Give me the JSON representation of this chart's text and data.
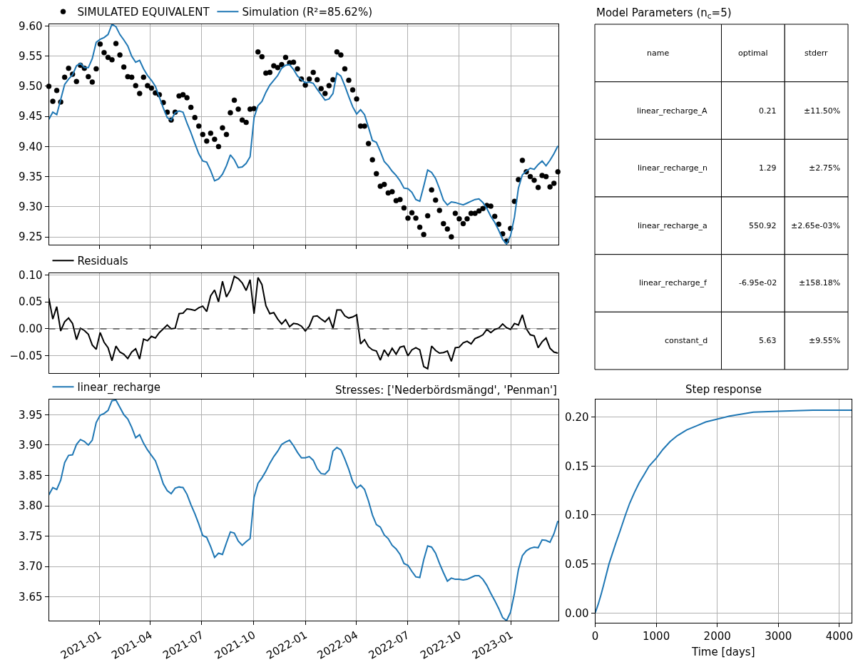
{
  "chart_data": [
    {
      "type": "line",
      "x": [
        "2020-10-03",
        "2020-10-10",
        "2020-10-17",
        "2020-10-24",
        "2020-10-31",
        "2020-11-07",
        "2020-11-14",
        "2020-11-21",
        "2020-11-28",
        "2020-12-05",
        "2020-12-12",
        "2020-12-19",
        "2020-12-26",
        "2021-01-02",
        "2021-01-09",
        "2021-01-16",
        "2021-01-23",
        "2021-01-30",
        "2021-02-06",
        "2021-02-13",
        "2021-02-20",
        "2021-02-27",
        "2021-03-06",
        "2021-03-13",
        "2021-03-20",
        "2021-03-27",
        "2021-04-03",
        "2021-04-10",
        "2021-04-17",
        "2021-04-24",
        "2021-05-01",
        "2021-05-08",
        "2021-05-15",
        "2021-05-22",
        "2021-05-29",
        "2021-06-05",
        "2021-06-12",
        "2021-06-19",
        "2021-06-26",
        "2021-07-03",
        "2021-07-10",
        "2021-07-17",
        "2021-07-24",
        "2021-07-31",
        "2021-08-07",
        "2021-08-14",
        "2021-08-21",
        "2021-08-28",
        "2021-09-04",
        "2021-09-11",
        "2021-09-18",
        "2021-09-25",
        "2021-10-02",
        "2021-10-09",
        "2021-10-16",
        "2021-10-23",
        "2021-10-30",
        "2021-11-06",
        "2021-11-13",
        "2021-11-20",
        "2021-11-27",
        "2021-12-04",
        "2021-12-11",
        "2021-12-18",
        "2021-12-25",
        "2022-01-01",
        "2022-01-08",
        "2022-01-15",
        "2022-01-22",
        "2022-01-29",
        "2022-02-05",
        "2022-02-12",
        "2022-02-19",
        "2022-02-26",
        "2022-03-05",
        "2022-03-12",
        "2022-03-19",
        "2022-03-26",
        "2022-04-02",
        "2022-04-09",
        "2022-04-16",
        "2022-04-23",
        "2022-04-30",
        "2022-05-07",
        "2022-05-14",
        "2022-05-21",
        "2022-05-28",
        "2022-06-04",
        "2022-06-11",
        "2022-06-18",
        "2022-06-25",
        "2022-07-02",
        "2022-07-09",
        "2022-07-16",
        "2022-07-23",
        "2022-07-30",
        "2022-08-06",
        "2022-08-13",
        "2022-08-20",
        "2022-08-27",
        "2022-09-03",
        "2022-09-10",
        "2022-09-17",
        "2022-09-24",
        "2022-10-01",
        "2022-10-08",
        "2022-10-15",
        "2022-10-22",
        "2022-10-29",
        "2022-11-05",
        "2022-11-12",
        "2022-11-19",
        "2022-11-26",
        "2022-12-03",
        "2022-12-10",
        "2022-12-17",
        "2022-12-24",
        "2022-12-31",
        "2023-01-07",
        "2023-01-14",
        "2023-01-21",
        "2023-01-28",
        "2023-02-04",
        "2023-02-11",
        "2023-02-18",
        "2023-02-25",
        "2023-03-04",
        "2023-03-11",
        "2023-03-18",
        "2023-03-25"
      ],
      "series": [
        {
          "name": "SIMULATED EQUIVALENT",
          "type": "scatter",
          "marker": "circle",
          "color": "#000000",
          "values": [
            9.5,
            9.475,
            9.493,
            9.474,
            9.515,
            9.53,
            9.52,
            9.508,
            9.535,
            9.53,
            9.516,
            9.507,
            9.529,
            9.57,
            9.556,
            9.548,
            9.544,
            9.571,
            9.552,
            9.532,
            9.516,
            9.515,
            9.501,
            9.488,
            9.515,
            9.501,
            9.497,
            9.489,
            9.486,
            9.473,
            9.457,
            9.444,
            9.457,
            9.484,
            9.486,
            9.481,
            9.465,
            9.448,
            9.434,
            9.42,
            9.409,
            9.422,
            9.412,
            9.4,
            9.431,
            9.42,
            9.456,
            9.477,
            9.462,
            9.444,
            9.44,
            9.462,
            9.463,
            9.557,
            9.549,
            9.522,
            9.523,
            9.534,
            9.531,
            9.536,
            9.548,
            9.539,
            9.54,
            9.529,
            9.512,
            9.502,
            9.512,
            9.523,
            9.511,
            9.496,
            9.488,
            9.501,
            9.511,
            9.557,
            9.552,
            9.529,
            9.51,
            9.494,
            9.479,
            9.434,
            9.434,
            9.405,
            9.378,
            9.355,
            9.334,
            9.337,
            9.323,
            9.325,
            9.31,
            9.312,
            9.298,
            9.281,
            9.29,
            9.281,
            9.266,
            9.254,
            9.285,
            9.328,
            9.311,
            9.294,
            9.272,
            9.263,
            9.25,
            9.289,
            9.28,
            9.272,
            9.28,
            9.289,
            9.289,
            9.293,
            9.297,
            9.302,
            9.301,
            9.284,
            9.271,
            9.255,
            9.243,
            9.264,
            9.309,
            9.345,
            9.377,
            9.358,
            9.35,
            9.344,
            9.332,
            9.352,
            9.35,
            9.333,
            9.339,
            9.358
          ]
        },
        {
          "name": "Simulation (R²=85.62%)",
          "color": "#1f77b4",
          "values": [
            9.445,
            9.457,
            9.453,
            9.478,
            9.503,
            9.512,
            9.519,
            9.534,
            9.538,
            9.531,
            9.531,
            9.546,
            9.573,
            9.578,
            9.581,
            9.586,
            9.603,
            9.599,
            9.586,
            9.577,
            9.567,
            9.55,
            9.54,
            9.543,
            9.529,
            9.518,
            9.51,
            9.5,
            9.482,
            9.464,
            9.448,
            9.444,
            9.456,
            9.459,
            9.457,
            9.439,
            9.423,
            9.405,
            9.388,
            9.376,
            9.374,
            9.36,
            9.343,
            9.346,
            9.354,
            9.368,
            9.386,
            9.378,
            9.365,
            9.366,
            9.372,
            9.383,
            9.448,
            9.468,
            9.475,
            9.49,
            9.502,
            9.51,
            9.518,
            9.53,
            9.535,
            9.536,
            9.528,
            9.517,
            9.511,
            9.506,
            9.507,
            9.505,
            9.495,
            9.486,
            9.477,
            9.479,
            9.488,
            9.522,
            9.517,
            9.501,
            9.483,
            9.466,
            9.454,
            9.461,
            9.453,
            9.432,
            9.41,
            9.407,
            9.392,
            9.375,
            9.368,
            9.359,
            9.352,
            9.343,
            9.331,
            9.33,
            9.324,
            9.312,
            9.309,
            9.334,
            9.361,
            9.357,
            9.347,
            9.33,
            9.311,
            9.303,
            9.308,
            9.307,
            9.305,
            9.303,
            9.306,
            9.309,
            9.312,
            9.313,
            9.307,
            9.297,
            9.284,
            9.274,
            9.261,
            9.246,
            9.238,
            9.252,
            9.283,
            9.331,
            9.353,
            9.359,
            9.364,
            9.362,
            9.37,
            9.376,
            9.368,
            9.377,
            9.388,
            9.401
          ]
        }
      ],
      "xlim": [
        "2020-10-03",
        "2023-03-26"
      ],
      "xticks": [
        "2021-01-01",
        "2021-04-01",
        "2021-07-01",
        "2021-10-01",
        "2022-01-01",
        "2022-04-01",
        "2022-07-01",
        "2022-10-01",
        "2023-01-01"
      ],
      "ylim": [
        9.237,
        9.603
      ],
      "yticks": [
        9.25,
        {
          "value": 9.3,
          "label": "9.30"
        },
        9.35,
        {
          "value": 9.4,
          "label": "9.40"
        },
        9.45,
        {
          "value": 9.5,
          "label": "9.50"
        },
        9.55,
        {
          "value": 9.6,
          "label": "9.60"
        }
      ],
      "grid": true,
      "legend": "top left",
      "tick_labels": "y"
    },
    {
      "type": "other",
      "title": "Model Parameters (n$_{c}$=5)",
      "categories": [
        "name",
        "optimal",
        "stderr"
      ],
      "cell_labels": [
        [
          "linear_recharge_A",
          "0.21",
          "±11.50%"
        ],
        [
          "linear_recharge_n",
          "1.29",
          "±2.75%"
        ],
        [
          "linear_recharge_a",
          "550.92",
          "±2.65e-03%"
        ],
        [
          "linear_recharge_f",
          "-6.95e-02",
          "±158.18%"
        ],
        [
          "constant_d",
          "5.63",
          "±9.55%"
        ]
      ]
    },
    {
      "type": "line",
      "x": [
        "2020-10-03",
        "2020-10-10",
        "2020-10-17",
        "2020-10-24",
        "2020-10-31",
        "2020-11-07",
        "2020-11-14",
        "2020-11-21",
        "2020-11-28",
        "2020-12-05",
        "2020-12-12",
        "2020-12-19",
        "2020-12-26",
        "2021-01-02",
        "2021-01-09",
        "2021-01-16",
        "2021-01-23",
        "2021-01-30",
        "2021-02-06",
        "2021-02-13",
        "2021-02-20",
        "2021-02-27",
        "2021-03-06",
        "2021-03-13",
        "2021-03-20",
        "2021-03-27",
        "2021-04-03",
        "2021-04-10",
        "2021-04-17",
        "2021-04-24",
        "2021-05-01",
        "2021-05-08",
        "2021-05-15",
        "2021-05-22",
        "2021-05-29",
        "2021-06-05",
        "2021-06-12",
        "2021-06-19",
        "2021-06-26",
        "2021-07-03",
        "2021-07-10",
        "2021-07-17",
        "2021-07-24",
        "2021-07-31",
        "2021-08-07",
        "2021-08-14",
        "2021-08-21",
        "2021-08-28",
        "2021-09-04",
        "2021-09-11",
        "2021-09-18",
        "2021-09-25",
        "2021-10-02",
        "2021-10-09",
        "2021-10-16",
        "2021-10-23",
        "2021-10-30",
        "2021-11-06",
        "2021-11-13",
        "2021-11-20",
        "2021-11-27",
        "2021-12-04",
        "2021-12-11",
        "2021-12-18",
        "2021-12-25",
        "2022-01-01",
        "2022-01-08",
        "2022-01-15",
        "2022-01-22",
        "2022-01-29",
        "2022-02-05",
        "2022-02-12",
        "2022-02-19",
        "2022-02-26",
        "2022-03-05",
        "2022-03-12",
        "2022-03-19",
        "2022-03-26",
        "2022-04-02",
        "2022-04-09",
        "2022-04-16",
        "2022-04-23",
        "2022-04-30",
        "2022-05-07",
        "2022-05-14",
        "2022-05-21",
        "2022-05-28",
        "2022-06-04",
        "2022-06-11",
        "2022-06-18",
        "2022-06-25",
        "2022-07-02",
        "2022-07-09",
        "2022-07-16",
        "2022-07-23",
        "2022-07-30",
        "2022-08-06",
        "2022-08-13",
        "2022-08-20",
        "2022-08-27",
        "2022-09-03",
        "2022-09-10",
        "2022-09-17",
        "2022-09-24",
        "2022-10-01",
        "2022-10-08",
        "2022-10-15",
        "2022-10-22",
        "2022-10-29",
        "2022-11-05",
        "2022-11-12",
        "2022-11-19",
        "2022-11-26",
        "2022-12-03",
        "2022-12-10",
        "2022-12-17",
        "2022-12-24",
        "2022-12-31",
        "2023-01-07",
        "2023-01-14",
        "2023-01-21",
        "2023-01-28",
        "2023-02-04",
        "2023-02-11",
        "2023-02-18",
        "2023-02-25",
        "2023-03-04",
        "2023-03-11",
        "2023-03-18",
        "2023-03-25"
      ],
      "series": [
        {
          "name": "Residuals",
          "color": "#000000",
          "values": [
            0.057,
            0.018,
            0.041,
            -0.004,
            0.013,
            0.02,
            0.01,
            -0.02,
            0.001,
            -0.003,
            -0.01,
            -0.03,
            -0.038,
            -0.007,
            -0.025,
            -0.035,
            -0.059,
            -0.032,
            -0.043,
            -0.047,
            -0.055,
            -0.043,
            -0.037,
            -0.056,
            -0.019,
            -0.022,
            -0.014,
            -0.017,
            -0.007,
            0.0,
            0.007,
            0.0,
            0.001,
            0.028,
            0.029,
            0.037,
            0.036,
            0.034,
            0.039,
            0.042,
            0.032,
            0.061,
            0.072,
            0.05,
            0.088,
            0.059,
            0.072,
            0.097,
            0.093,
            0.085,
            0.071,
            0.091,
            0.028,
            0.095,
            0.082,
            0.043,
            0.028,
            0.03,
            0.018,
            0.009,
            0.017,
            0.004,
            0.01,
            0.009,
            0.005,
            -0.004,
            0.005,
            0.023,
            0.024,
            0.018,
            0.013,
            0.021,
            0.001,
            0.035,
            0.035,
            0.024,
            0.02,
            0.022,
            0.026,
            -0.028,
            -0.02,
            -0.033,
            -0.039,
            -0.041,
            -0.058,
            -0.039,
            -0.05,
            -0.036,
            -0.047,
            -0.034,
            -0.032,
            -0.05,
            -0.039,
            -0.035,
            -0.039,
            -0.07,
            -0.074,
            -0.032,
            -0.04,
            -0.045,
            -0.044,
            -0.041,
            -0.06,
            -0.035,
            -0.034,
            -0.026,
            -0.023,
            -0.028,
            -0.018,
            -0.015,
            -0.011,
            -0.001,
            -0.007,
            -0.001,
            0.001,
            0.009,
            0.002,
            -0.001,
            0.01,
            0.007,
            0.026,
            0.0,
            -0.011,
            -0.013,
            -0.035,
            -0.024,
            -0.017,
            -0.036,
            -0.043,
            -0.045
          ]
        }
      ],
      "xlim": [
        "2020-10-03",
        "2023-03-26"
      ],
      "xticks": [
        "2021-01-01",
        "2021-04-01",
        "2021-07-01",
        "2021-10-01",
        "2022-01-01",
        "2022-04-01",
        "2022-07-01",
        "2022-10-01",
        "2023-01-01"
      ],
      "ylim": [
        -0.082,
        0.103
      ],
      "yticks": [
        {
          "value": -0.05,
          "label": "−0.05"
        },
        {
          "value": 0,
          "label": "0.00"
        },
        0.05,
        {
          "value": 0.1,
          "label": "0.10"
        }
      ],
      "ref_lines": [
        {
          "axis": "y",
          "value": 0,
          "color": "#555555",
          "line_style": "dashed"
        }
      ],
      "grid": true,
      "legend": "top left",
      "tick_labels": "y"
    },
    {
      "type": "line",
      "x": [
        "2020-10-03",
        "2020-10-10",
        "2020-10-17",
        "2020-10-24",
        "2020-10-31",
        "2020-11-07",
        "2020-11-14",
        "2020-11-21",
        "2020-11-28",
        "2020-12-05",
        "2020-12-12",
        "2020-12-19",
        "2020-12-26",
        "2021-01-02",
        "2021-01-09",
        "2021-01-16",
        "2021-01-23",
        "2021-01-30",
        "2021-02-06",
        "2021-02-13",
        "2021-02-20",
        "2021-02-27",
        "2021-03-06",
        "2021-03-13",
        "2021-03-20",
        "2021-03-27",
        "2021-04-03",
        "2021-04-10",
        "2021-04-17",
        "2021-04-24",
        "2021-05-01",
        "2021-05-08",
        "2021-05-15",
        "2021-05-22",
        "2021-05-29",
        "2021-06-05",
        "2021-06-12",
        "2021-06-19",
        "2021-06-26",
        "2021-07-03",
        "2021-07-10",
        "2021-07-17",
        "2021-07-24",
        "2021-07-31",
        "2021-08-07",
        "2021-08-14",
        "2021-08-21",
        "2021-08-28",
        "2021-09-04",
        "2021-09-11",
        "2021-09-18",
        "2021-09-25",
        "2021-10-02",
        "2021-10-09",
        "2021-10-16",
        "2021-10-23",
        "2021-10-30",
        "2021-11-06",
        "2021-11-13",
        "2021-11-20",
        "2021-11-27",
        "2021-12-04",
        "2021-12-11",
        "2021-12-18",
        "2021-12-25",
        "2022-01-01",
        "2022-01-08",
        "2022-01-15",
        "2022-01-22",
        "2022-01-29",
        "2022-02-05",
        "2022-02-12",
        "2022-02-19",
        "2022-02-26",
        "2022-03-05",
        "2022-03-12",
        "2022-03-19",
        "2022-03-26",
        "2022-04-02",
        "2022-04-09",
        "2022-04-16",
        "2022-04-23",
        "2022-04-30",
        "2022-05-07",
        "2022-05-14",
        "2022-05-21",
        "2022-05-28",
        "2022-06-04",
        "2022-06-11",
        "2022-06-18",
        "2022-06-25",
        "2022-07-02",
        "2022-07-09",
        "2022-07-16",
        "2022-07-23",
        "2022-07-30",
        "2022-08-06",
        "2022-08-13",
        "2022-08-20",
        "2022-08-27",
        "2022-09-03",
        "2022-09-10",
        "2022-09-17",
        "2022-09-24",
        "2022-10-01",
        "2022-10-08",
        "2022-10-15",
        "2022-10-22",
        "2022-10-29",
        "2022-11-05",
        "2022-11-12",
        "2022-11-19",
        "2022-11-26",
        "2022-12-03",
        "2022-12-10",
        "2022-12-17",
        "2022-12-24",
        "2022-12-31",
        "2023-01-07",
        "2023-01-14",
        "2023-01-21",
        "2023-01-28",
        "2023-02-04",
        "2023-02-11",
        "2023-02-18",
        "2023-02-25",
        "2023-03-04",
        "2023-03-11",
        "2023-03-18",
        "2023-03-25"
      ],
      "series": [
        {
          "name": "linear_recharge",
          "color": "#1f77b4",
          "values": [
            3.818,
            3.83,
            3.827,
            3.842,
            3.871,
            3.883,
            3.884,
            3.901,
            3.909,
            3.906,
            3.9,
            3.908,
            3.937,
            3.949,
            3.952,
            3.957,
            3.973,
            3.974,
            3.962,
            3.95,
            3.943,
            3.929,
            3.912,
            3.917,
            3.903,
            3.892,
            3.883,
            3.874,
            3.856,
            3.836,
            3.825,
            3.82,
            3.829,
            3.831,
            3.83,
            3.819,
            3.802,
            3.787,
            3.77,
            3.751,
            3.748,
            3.733,
            3.715,
            3.722,
            3.72,
            3.739,
            3.757,
            3.755,
            3.742,
            3.735,
            3.741,
            3.746,
            3.814,
            3.837,
            3.846,
            3.857,
            3.87,
            3.881,
            3.89,
            3.901,
            3.905,
            3.908,
            3.899,
            3.888,
            3.879,
            3.879,
            3.881,
            3.875,
            3.861,
            3.853,
            3.852,
            3.859,
            3.89,
            3.896,
            3.892,
            3.877,
            3.86,
            3.84,
            3.829,
            3.834,
            3.827,
            3.808,
            3.785,
            3.769,
            3.765,
            3.752,
            3.746,
            3.735,
            3.729,
            3.72,
            3.705,
            3.702,
            3.692,
            3.683,
            3.682,
            3.711,
            3.734,
            3.732,
            3.722,
            3.705,
            3.69,
            3.676,
            3.681,
            3.679,
            3.679,
            3.678,
            3.679,
            3.682,
            3.685,
            3.685,
            3.679,
            3.669,
            3.656,
            3.644,
            3.631,
            3.616,
            3.611,
            3.625,
            3.656,
            3.695,
            3.718,
            3.726,
            3.73,
            3.732,
            3.731,
            3.744,
            3.743,
            3.74,
            3.754,
            3.775
          ]
        }
      ],
      "annotations": [
        "Stresses: ['Nederbördsmängd', 'Penman']"
      ],
      "xlim": [
        "2020-10-03",
        "2023-03-26"
      ],
      "xticks": [
        {
          "value": "2021-01-01",
          "label": "2021-01"
        },
        {
          "value": "2021-04-01",
          "label": "2021-04"
        },
        {
          "value": "2021-07-01",
          "label": "2021-07"
        },
        {
          "value": "2021-10-01",
          "label": "2021-10"
        },
        {
          "value": "2022-01-01",
          "label": "2022-01"
        },
        {
          "value": "2022-04-01",
          "label": "2022-04"
        },
        {
          "value": "2022-07-01",
          "label": "2022-07"
        },
        {
          "value": "2022-10-01",
          "label": "2022-10"
        },
        {
          "value": "2023-01-01",
          "label": "2023-01"
        }
      ],
      "ylim": [
        3.611,
        3.975
      ],
      "yticks": [
        3.65,
        {
          "value": 3.7,
          "label": "3.70"
        },
        3.75,
        {
          "value": 3.8,
          "label": "3.80"
        },
        3.85,
        {
          "value": 3.9,
          "label": "3.90"
        },
        3.95
      ],
      "grid": true,
      "legend": "top left"
    },
    {
      "type": "line",
      "title": "Step response",
      "xlabel": "Time [days]",
      "x": [
        0,
        50,
        97,
        136,
        226,
        331,
        409,
        495,
        565,
        643,
        721,
        799,
        884,
        1000,
        1110,
        1227,
        1344,
        1500,
        1656,
        1811,
        2000,
        2201,
        2396,
        2591,
        3000,
        3565,
        4200
      ],
      "series": [
        {
          "color": "#1f77b4",
          "values": [
            0,
            0.009,
            0.019,
            0.028,
            0.05,
            0.07,
            0.084,
            0.1,
            0.112,
            0.123,
            0.133,
            0.141,
            0.15,
            0.158,
            0.167,
            0.175,
            0.181,
            0.187,
            0.191,
            0.195,
            0.198,
            0.201,
            0.203,
            0.205,
            0.206,
            0.207,
            0.207
          ]
        }
      ],
      "xlim": [
        0,
        4200
      ],
      "xticks": [
        0,
        1000,
        2000,
        3000,
        4000
      ],
      "ylim": [
        -0.01,
        0.218
      ],
      "yticks": [
        {
          "value": 0,
          "label": "0.00"
        },
        0.05,
        {
          "value": 0.1,
          "label": "0.10"
        },
        0.15,
        {
          "value": 0.2,
          "label": "0.20"
        }
      ],
      "grid": true
    }
  ]
}
